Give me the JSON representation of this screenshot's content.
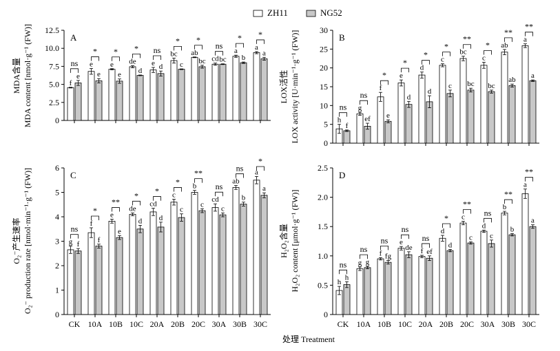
{
  "legend": {
    "items": [
      {
        "label": "ZH11",
        "color": "#ffffff"
      },
      {
        "label": "NG52",
        "color": "#c8c8c8"
      }
    ]
  },
  "xlabel": "处理 Treatment",
  "chart_data": [
    {
      "type": "bar",
      "panel": "A",
      "ylabel_cn": "MDA含量",
      "ylabel_en": "MDA content [nmol·g⁻¹ (FW)]",
      "ylim": [
        0,
        12.5
      ],
      "yticks": [
        0,
        2.5,
        5.0,
        7.5,
        10.0,
        12.5
      ],
      "ytick_labels": [
        "0",
        "2.5",
        "5.0",
        "7.5",
        "10.0",
        "12.5"
      ],
      "categories": [
        "CK",
        "10A",
        "10B",
        "10C",
        "20A",
        "20B",
        "20C",
        "30A",
        "30B",
        "30C"
      ],
      "series": [
        {
          "name": "ZH11",
          "values": [
            4.55,
            6.8,
            7.1,
            7.45,
            7.0,
            8.3,
            8.75,
            7.8,
            8.9,
            9.4
          ],
          "errors": [
            0.05,
            0.4,
            0.08,
            0.15,
            0.35,
            0.35,
            0.05,
            0.15,
            0.15,
            0.15
          ],
          "letters": [
            "f",
            "e",
            "e",
            "de",
            "e",
            "bc",
            "ab",
            "cd",
            "a",
            "a"
          ]
        },
        {
          "name": "NG52",
          "values": [
            5.2,
            5.5,
            5.45,
            6.25,
            6.5,
            7.1,
            7.45,
            7.8,
            8.0,
            8.55
          ],
          "errors": [
            0.35,
            0.3,
            0.3,
            0.05,
            0.35,
            0.05,
            0.2,
            0.05,
            0.1,
            0.2
          ],
          "letters": [
            "e",
            "e",
            "e",
            "d",
            "d",
            "c",
            "bc",
            "bc",
            "b",
            "a"
          ]
        }
      ],
      "significance": [
        "ns",
        "*",
        "*",
        "*",
        "ns",
        "*",
        "*",
        "ns",
        "*",
        "*"
      ]
    },
    {
      "type": "bar",
      "panel": "B",
      "ylabel_cn": "LOX活性",
      "ylabel_en": "LOX activity [U·min⁻¹·g⁻¹ (FW)]",
      "ylim": [
        0,
        30
      ],
      "yticks": [
        0,
        5,
        10,
        15,
        20,
        25,
        30
      ],
      "ytick_labels": [
        "0",
        "5",
        "10",
        "15",
        "20",
        "25",
        "30"
      ],
      "categories": [
        "CK",
        "10A",
        "10B",
        "10C",
        "20A",
        "20B",
        "20C",
        "30A",
        "30B",
        "30C"
      ],
      "series": [
        {
          "name": "ZH11",
          "values": [
            3.8,
            7.8,
            12.3,
            16.0,
            18.1,
            20.7,
            22.5,
            20.7,
            24.2,
            25.9
          ],
          "errors": [
            1.2,
            0.4,
            1.2,
            0.8,
            0.8,
            0.4,
            0.6,
            0.8,
            0.7,
            0.5
          ],
          "letters": [
            "h",
            "g",
            "f",
            "e",
            "d",
            "c",
            "bc",
            "c",
            "ab",
            "a"
          ]
        },
        {
          "name": "NG52",
          "values": [
            3.3,
            4.5,
            5.8,
            10.3,
            11.0,
            13.2,
            14.1,
            13.7,
            15.3,
            16.6
          ],
          "errors": [
            0.2,
            0.8,
            0.4,
            0.8,
            1.6,
            0.9,
            0.5,
            0.4,
            0.4,
            0.2
          ],
          "letters": [
            "f",
            "ef",
            "e",
            "d",
            "d",
            "c",
            "bc",
            "bc",
            "ab",
            "a"
          ]
        }
      ],
      "significance": [
        "ns",
        "ns",
        "*",
        "*",
        "*",
        "*",
        "**",
        "*",
        "**",
        "**"
      ]
    },
    {
      "type": "bar",
      "panel": "C",
      "ylabel_cn": "O₂⁻产生速率",
      "ylabel_en": "O₂⁻ production rate [nmol·min⁻¹·g⁻¹ (FW)]",
      "ylim": [
        0,
        6
      ],
      "yticks": [
        0,
        1,
        2,
        3,
        4,
        5,
        6
      ],
      "ytick_labels": [
        "0",
        "1",
        "2",
        "3",
        "4",
        "5",
        "6"
      ],
      "categories": [
        "CK",
        "10A",
        "10B",
        "10C",
        "20A",
        "20B",
        "20C",
        "30A",
        "30B",
        "30C"
      ],
      "series": [
        {
          "name": "ZH11",
          "values": [
            2.65,
            3.35,
            3.82,
            4.1,
            4.2,
            4.6,
            5.0,
            4.38,
            5.2,
            5.5
          ],
          "errors": [
            0.15,
            0.2,
            0.08,
            0.06,
            0.15,
            0.12,
            0.08,
            0.15,
            0.08,
            0.15
          ],
          "letters": [
            "g",
            "f",
            "e",
            "de",
            "cd",
            "c",
            "b",
            "cd",
            "ab",
            "a"
          ]
        },
        {
          "name": "NG52",
          "values": [
            2.6,
            2.8,
            3.15,
            3.5,
            3.58,
            3.97,
            4.25,
            4.08,
            4.52,
            4.88
          ],
          "errors": [
            0.1,
            0.08,
            0.08,
            0.15,
            0.2,
            0.15,
            0.08,
            0.08,
            0.08,
            0.1
          ],
          "letters": [
            "f",
            "f",
            "e",
            "d",
            "d",
            "c",
            "c",
            "c",
            "b",
            "a"
          ]
        }
      ],
      "significance": [
        "ns",
        "*",
        "**",
        "*",
        "*",
        "*",
        "**",
        "ns",
        "ns",
        "*"
      ]
    },
    {
      "type": "bar",
      "panel": "D",
      "ylabel_cn": "H₂O₂含量",
      "ylabel_en": "H₂O₂ content [μmol·g⁻¹ (FW)]",
      "ylim": [
        0,
        2.5
      ],
      "yticks": [
        0,
        0.5,
        1.0,
        1.5,
        2.0,
        2.5
      ],
      "ytick_labels": [
        "0",
        "0.5",
        "1.0",
        "1.5",
        "2.0",
        "2.5"
      ],
      "categories": [
        "CK",
        "10A",
        "10B",
        "10C",
        "20A",
        "20B",
        "20C",
        "30A",
        "30B",
        "30C"
      ],
      "series": [
        {
          "name": "ZH11",
          "values": [
            0.41,
            0.78,
            0.95,
            1.13,
            0.99,
            1.3,
            1.56,
            1.42,
            1.73,
            2.06
          ],
          "errors": [
            0.07,
            0.03,
            0.02,
            0.03,
            0.02,
            0.05,
            0.03,
            0.02,
            0.03,
            0.08
          ],
          "letters": [
            "h",
            "g",
            "f",
            "e",
            "f",
            "d",
            "c",
            "d",
            "b",
            "a"
          ]
        },
        {
          "name": "NG52",
          "values": [
            0.51,
            0.8,
            0.89,
            1.02,
            0.96,
            1.09,
            1.22,
            1.21,
            1.36,
            1.5
          ],
          "errors": [
            0.05,
            0.02,
            0.03,
            0.05,
            0.04,
            0.02,
            0.02,
            0.06,
            0.02,
            0.03
          ],
          "letters": [
            "h",
            "g",
            "fg",
            "de",
            "ef",
            "d",
            "c",
            "c",
            "b",
            "a"
          ]
        }
      ],
      "significance": [
        "ns",
        "ns",
        "ns",
        "ns",
        "ns",
        "*",
        "**",
        "ns",
        "**",
        "**"
      ]
    }
  ]
}
